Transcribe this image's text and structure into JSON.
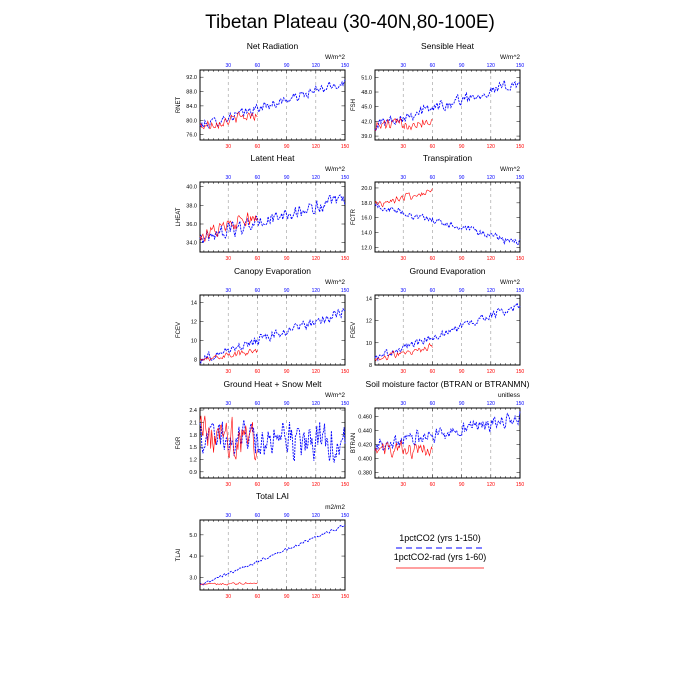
{
  "title": "Tibetan Plateau (30-40N,80-100E)",
  "colors": {
    "series1": "#0000ff",
    "series2": "#ff0000",
    "grid": "#999999"
  },
  "legend": [
    {
      "label": "1pctCO2 (yrs 1-150)",
      "color": "#0000ff",
      "style": "dashed"
    },
    {
      "label": "1pctCO2-rad (yrs 1-60)",
      "color": "#ff0000",
      "style": "solid"
    }
  ],
  "chart_data": [
    {
      "type": "line",
      "title": "Net Radiation",
      "ylabel": "RNET",
      "units": "W/m^2",
      "xlim": [
        1,
        150
      ],
      "xticks": [
        30,
        60,
        90,
        120,
        150
      ],
      "ylim": [
        74.5,
        94
      ],
      "yticks": [
        "76.0",
        "80.0",
        "84.0",
        "88.0",
        "92.0"
      ],
      "series": [
        {
          "name": "1pctCO2 (yrs 1-150)",
          "start": 78.4,
          "end": 90.6,
          "noise": 1.6,
          "n": 150
        },
        {
          "name": "1pctCO2-rad (yrs 1-60)",
          "start": 78.3,
          "end": 81.7,
          "noise": 1.8,
          "n": 60
        }
      ]
    },
    {
      "type": "line",
      "title": "Sensible Heat",
      "ylabel": "FSH",
      "units": "W/m^2",
      "xlim": [
        1,
        150
      ],
      "xticks": [
        30,
        60,
        90,
        120,
        150
      ],
      "ylim": [
        38.2,
        52.5
      ],
      "yticks": [
        "39.0",
        "42.0",
        "45.0",
        "48.0",
        "51.0"
      ],
      "series": [
        {
          "name": "1pctCO2 (yrs 1-150)",
          "start": 41.3,
          "end": 50.0,
          "noise": 1.4,
          "n": 150
        },
        {
          "name": "1pctCO2-rad (yrs 1-60)",
          "start": 41.0,
          "end": 42.2,
          "noise": 1.6,
          "n": 60
        }
      ]
    },
    {
      "type": "line",
      "title": "Latent Heat",
      "ylabel": "LHEAT",
      "units": "W/m^2",
      "xlim": [
        1,
        150
      ],
      "xticks": [
        30,
        60,
        90,
        120,
        150
      ],
      "ylim": [
        33.0,
        40.5
      ],
      "yticks": [
        "34.0",
        "36.0",
        "38.0",
        "40.0"
      ],
      "series": [
        {
          "name": "1pctCO2 (yrs 1-150)",
          "start": 34.5,
          "end": 38.6,
          "noise": 0.9,
          "n": 150
        },
        {
          "name": "1pctCO2-rad (yrs 1-60)",
          "start": 34.8,
          "end": 36.6,
          "noise": 1.0,
          "n": 60
        }
      ]
    },
    {
      "type": "line",
      "title": "Transpiration",
      "ylabel": "FCTR",
      "units": "W/m^2",
      "xlim": [
        1,
        150
      ],
      "xticks": [
        30,
        60,
        90,
        120,
        150
      ],
      "ylim": [
        11.4,
        20.8
      ],
      "yticks": [
        "12.0",
        "14.0",
        "16.0",
        "18.0",
        "20.0"
      ],
      "series": [
        {
          "name": "1pctCO2 (yrs 1-150)",
          "start": 17.6,
          "end": 12.6,
          "noise": 0.6,
          "n": 150
        },
        {
          "name": "1pctCO2-rad (yrs 1-60)",
          "start": 17.8,
          "end": 19.6,
          "noise": 0.6,
          "n": 60
        }
      ]
    },
    {
      "type": "line",
      "title": "Canopy Evaporation",
      "ylabel": "FCEV",
      "units": "W/m^2",
      "xlim": [
        1,
        150
      ],
      "xticks": [
        30,
        60,
        90,
        120,
        150
      ],
      "ylim": [
        7.4,
        14.8
      ],
      "yticks": [
        "8",
        "10",
        "12",
        "14"
      ],
      "series": [
        {
          "name": "1pctCO2 (yrs 1-150)",
          "start": 8.0,
          "end": 13.0,
          "noise": 0.6,
          "n": 150
        },
        {
          "name": "1pctCO2-rad (yrs 1-60)",
          "start": 8.1,
          "end": 8.8,
          "noise": 0.4,
          "n": 60
        }
      ]
    },
    {
      "type": "line",
      "title": "Ground Evaporation",
      "ylabel": "FGEV",
      "units": "W/m^2",
      "xlim": [
        1,
        150
      ],
      "xticks": [
        30,
        60,
        90,
        120,
        150
      ],
      "ylim": [
        8.0,
        14.3
      ],
      "yticks": [
        "8",
        "10",
        "12",
        "14"
      ],
      "series": [
        {
          "name": "1pctCO2 (yrs 1-150)",
          "start": 8.6,
          "end": 13.4,
          "noise": 0.45,
          "n": 150
        },
        {
          "name": "1pctCO2-rad (yrs 1-60)",
          "start": 8.5,
          "end": 9.7,
          "noise": 0.4,
          "n": 60
        }
      ]
    },
    {
      "type": "line",
      "title": "Ground Heat + Snow Melt",
      "ylabel": "FGR",
      "units": "W/m^2",
      "xlim": [
        1,
        150
      ],
      "xticks": [
        30,
        60,
        90,
        120,
        150
      ],
      "ylim": [
        0.75,
        2.45
      ],
      "yticks": [
        "0.9",
        "1.2",
        "1.5",
        "1.8",
        "2.1",
        "2.4"
      ],
      "series": [
        {
          "name": "1pctCO2 (yrs 1-150)",
          "start": 1.75,
          "end": 1.6,
          "noise": 0.55,
          "n": 150
        },
        {
          "name": "1pctCO2-rad (yrs 1-60)",
          "start": 1.78,
          "end": 1.72,
          "noise": 0.55,
          "n": 60
        }
      ]
    },
    {
      "type": "line",
      "title": "Soil moisture factor (BTRAN or BTRANMN)",
      "ylabel": "BTRAN",
      "units": "unitless",
      "xlim": [
        1,
        150
      ],
      "xticks": [
        30,
        60,
        90,
        120,
        150
      ],
      "ylim": [
        0.372,
        0.472
      ],
      "yticks": [
        "0.380",
        "0.400",
        "0.420",
        "0.440",
        "0.460"
      ],
      "series": [
        {
          "name": "1pctCO2 (yrs 1-150)",
          "start": 0.416,
          "end": 0.458,
          "noise": 0.013,
          "n": 150
        },
        {
          "name": "1pctCO2-rad (yrs 1-60)",
          "start": 0.413,
          "end": 0.412,
          "noise": 0.014,
          "n": 60
        }
      ]
    },
    {
      "type": "line",
      "title": "Total LAI",
      "ylabel": "TLAI",
      "units": "m2/m2",
      "xlim": [
        1,
        150
      ],
      "xticks": [
        30,
        60,
        90,
        120,
        150
      ],
      "ylim": [
        2.4,
        5.7
      ],
      "yticks": [
        "3.0",
        "4.0",
        "5.0"
      ],
      "series": [
        {
          "name": "1pctCO2 (yrs 1-150)",
          "start": 2.62,
          "end": 5.45,
          "noise": 0.08,
          "n": 150
        },
        {
          "name": "1pctCO2-rad (yrs 1-60)",
          "start": 2.65,
          "end": 2.75,
          "noise": 0.07,
          "n": 60
        }
      ]
    }
  ]
}
